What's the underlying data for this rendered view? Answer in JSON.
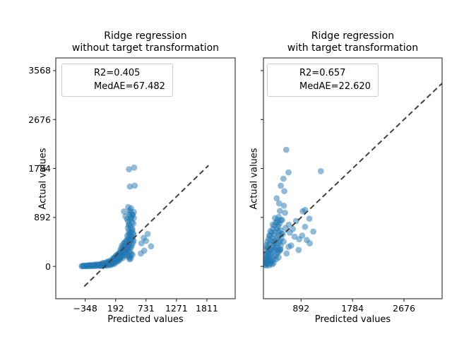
{
  "figure": {
    "background": "#ffffff"
  },
  "style": {
    "marker_color": "#1f77b4",
    "marker_opacity": 0.5,
    "marker_radius": 4.4,
    "identity_line_color": "#404040",
    "spine_color": "#1a1a1a",
    "legend_border_color": "#cccccc",
    "text_color": "#000000"
  },
  "chart_data": [
    {
      "type": "scatter",
      "title": "Ridge regression\nwithout target transformation",
      "xlabel": "Predicted values",
      "ylabel": "Actual values",
      "legend": [
        "R2=0.405",
        "MedAE=67.482"
      ],
      "xlim": [
        -870,
        2313
      ],
      "ylim": [
        -590,
        3799
      ],
      "xticks": {
        "values": [
          -348,
          192,
          731,
          1271,
          1811
        ],
        "labels": [
          "−348",
          "192",
          "731",
          "1271",
          "1811"
        ]
      },
      "yticks": {
        "values": [
          0,
          892,
          1784,
          2676,
          3568
        ],
        "labels": [
          "0",
          "892",
          "1784",
          "2676",
          "3568"
        ]
      },
      "identity_line": {
        "x1": -365,
        "y1": -365,
        "x2": 1840,
        "y2": 1840
      },
      "points": [
        [
          -410,
          2
        ],
        [
          -396,
          7
        ],
        [
          -382,
          12
        ],
        [
          -368,
          4
        ],
        [
          -350,
          8
        ],
        [
          -340,
          3
        ],
        [
          -326,
          14
        ],
        [
          -312,
          5
        ],
        [
          -300,
          22
        ],
        [
          -290,
          9
        ],
        [
          -276,
          16
        ],
        [
          -262,
          4
        ],
        [
          -250,
          27
        ],
        [
          -240,
          11
        ],
        [
          -226,
          6
        ],
        [
          -212,
          19
        ],
        [
          -200,
          9
        ],
        [
          -190,
          32
        ],
        [
          -176,
          13
        ],
        [
          -162,
          24
        ],
        [
          -150,
          7
        ],
        [
          -140,
          36
        ],
        [
          -126,
          16
        ],
        [
          -112,
          29
        ],
        [
          -100,
          11
        ],
        [
          -92,
          19
        ],
        [
          -84,
          42
        ],
        [
          -72,
          8
        ],
        [
          -62,
          31
        ],
        [
          -52,
          15
        ],
        [
          -46,
          52
        ],
        [
          -36,
          23
        ],
        [
          -26,
          62
        ],
        [
          -20,
          12
        ],
        [
          -10,
          36
        ],
        [
          0,
          21
        ],
        [
          6,
          56
        ],
        [
          16,
          29
        ],
        [
          26,
          72
        ],
        [
          32,
          14
        ],
        [
          42,
          46
        ],
        [
          50,
          88
        ],
        [
          56,
          26
        ],
        [
          66,
          62
        ],
        [
          76,
          36
        ],
        [
          82,
          96
        ],
        [
          90,
          52
        ],
        [
          96,
          21
        ],
        [
          100,
          76
        ],
        [
          106,
          42
        ],
        [
          110,
          92
        ],
        [
          116,
          62
        ],
        [
          126,
          112
        ],
        [
          130,
          36
        ],
        [
          136,
          82
        ],
        [
          140,
          132
        ],
        [
          146,
          56
        ],
        [
          150,
          102
        ],
        [
          156,
          152
        ],
        [
          160,
          72
        ],
        [
          166,
          122
        ],
        [
          170,
          46
        ],
        [
          176,
          162
        ],
        [
          180,
          96
        ],
        [
          186,
          136
        ],
        [
          190,
          182
        ],
        [
          196,
          76
        ],
        [
          200,
          142
        ],
        [
          206,
          202
        ],
        [
          210,
          112
        ],
        [
          216,
          166
        ],
        [
          220,
          92
        ],
        [
          226,
          212
        ],
        [
          230,
          132
        ],
        [
          236,
          176
        ],
        [
          240,
          232
        ],
        [
          246,
          106
        ],
        [
          250,
          192
        ],
        [
          256,
          152
        ],
        [
          260,
          242
        ],
        [
          266,
          122
        ],
        [
          270,
          202
        ],
        [
          276,
          292
        ],
        [
          280,
          162
        ],
        [
          286,
          252
        ],
        [
          290,
          332
        ],
        [
          296,
          182
        ],
        [
          300,
          272
        ],
        [
          306,
          382
        ],
        [
          310,
          212
        ],
        [
          316,
          302
        ],
        [
          320,
          152
        ],
        [
          326,
          362
        ],
        [
          330,
          242
        ],
        [
          336,
          422
        ],
        [
          340,
          282
        ],
        [
          346,
          192
        ],
        [
          350,
          342
        ],
        [
          356,
          432
        ],
        [
          360,
          252
        ],
        [
          366,
          382
        ],
        [
          370,
          302
        ],
        [
          376,
          462
        ],
        [
          380,
          222
        ],
        [
          385,
          320
        ],
        [
          390,
          480
        ],
        [
          395,
          200
        ],
        [
          400,
          560
        ],
        [
          405,
          380
        ],
        [
          410,
          700
        ],
        [
          415,
          290
        ],
        [
          420,
          520
        ],
        [
          425,
          640
        ],
        [
          430,
          410
        ],
        [
          435,
          760
        ],
        [
          440,
          340
        ],
        [
          445,
          600
        ],
        [
          450,
          860
        ],
        [
          455,
          460
        ],
        [
          460,
          720
        ],
        [
          465,
          540
        ],
        [
          470,
          900
        ],
        [
          475,
          390
        ],
        [
          480,
          660
        ],
        [
          485,
          800
        ],
        [
          490,
          500
        ],
        [
          495,
          940
        ],
        [
          500,
          430
        ],
        [
          505,
          780
        ],
        [
          510,
          580
        ],
        [
          515,
          880
        ],
        [
          390,
          260
        ],
        [
          400,
          330
        ],
        [
          410,
          440
        ],
        [
          420,
          360
        ],
        [
          430,
          580
        ],
        [
          440,
          490
        ],
        [
          450,
          270
        ],
        [
          460,
          620
        ],
        [
          470,
          350
        ],
        [
          480,
          540
        ],
        [
          490,
          680
        ],
        [
          500,
          610
        ],
        [
          510,
          470
        ],
        [
          415,
          820
        ],
        [
          425,
          750
        ],
        [
          435,
          950
        ],
        [
          445,
          1020
        ],
        [
          455,
          980
        ],
        [
          465,
          1060
        ],
        [
          430,
          160
        ],
        [
          450,
          185
        ],
        [
          470,
          230
        ],
        [
          490,
          210
        ],
        [
          440,
          130
        ],
        [
          460,
          145
        ],
        [
          430,
          1770
        ],
        [
          520,
          1800
        ],
        [
          445,
          1455
        ],
        [
          530,
          1470
        ],
        [
          415,
          1080
        ],
        [
          340,
          1000
        ],
        [
          515,
          990
        ],
        [
          365,
          912
        ],
        [
          465,
          875
        ],
        [
          490,
          940
        ],
        [
          395,
          860
        ],
        [
          650,
          420
        ],
        [
          700,
          285
        ],
        [
          760,
          590
        ],
        [
          820,
          365
        ],
        [
          690,
          520
        ],
        [
          640,
          235
        ],
        [
          730,
          465
        ]
      ]
    },
    {
      "type": "scatter",
      "title": "Ridge regression\nwith target transformation",
      "xlabel": "Predicted values",
      "ylabel": "Actual values",
      "legend": [
        "R2=0.657",
        "MedAE=22.620"
      ],
      "xlim": [
        240,
        3336
      ],
      "ylim": [
        -590,
        3799
      ],
      "xticks": {
        "values": [
          892,
          1784,
          2676
        ],
        "labels": [
          "892",
          "1784",
          "2676"
        ]
      },
      "yticks": {
        "values": [
          0,
          892,
          1784,
          2676,
          3568
        ],
        "labels": [
          "",
          "",
          "",
          "",
          ""
        ]
      },
      "identity_line": {
        "x1": 200,
        "y1": 200,
        "x2": 3400,
        "y2": 3400
      },
      "points": [
        [
          270,
          120
        ],
        [
          275,
          210
        ],
        [
          280,
          60
        ],
        [
          285,
          300
        ],
        [
          290,
          150
        ],
        [
          295,
          390
        ],
        [
          300,
          90
        ],
        [
          305,
          240
        ],
        [
          310,
          450
        ],
        [
          315,
          170
        ],
        [
          320,
          330
        ],
        [
          325,
          80
        ],
        [
          330,
          500
        ],
        [
          335,
          260
        ],
        [
          340,
          130
        ],
        [
          345,
          410
        ],
        [
          350,
          200
        ],
        [
          355,
          560
        ],
        [
          360,
          300
        ],
        [
          365,
          100
        ],
        [
          370,
          470
        ],
        [
          375,
          230
        ],
        [
          380,
          620
        ],
        [
          385,
          350
        ],
        [
          390,
          160
        ],
        [
          395,
          520
        ],
        [
          400,
          280
        ],
        [
          405,
          680
        ],
        [
          410,
          390
        ],
        [
          415,
          120
        ],
        [
          420,
          580
        ],
        [
          425,
          310
        ],
        [
          430,
          740
        ],
        [
          435,
          430
        ],
        [
          440,
          190
        ],
        [
          445,
          630
        ],
        [
          450,
          340
        ],
        [
          455,
          800
        ],
        [
          460,
          480
        ],
        [
          465,
          220
        ],
        [
          470,
          690
        ],
        [
          475,
          370
        ],
        [
          480,
          850
        ],
        [
          485,
          530
        ],
        [
          490,
          250
        ],
        [
          495,
          740
        ],
        [
          500,
          420
        ],
        [
          505,
          900
        ],
        [
          510,
          570
        ],
        [
          515,
          280
        ],
        [
          520,
          780
        ],
        [
          525,
          460
        ],
        [
          530,
          310
        ],
        [
          535,
          660
        ],
        [
          540,
          380
        ],
        [
          545,
          840
        ],
        [
          550,
          510
        ],
        [
          555,
          590
        ],
        [
          280,
          180
        ],
        [
          300,
          350
        ],
        [
          320,
          240
        ],
        [
          340,
          560
        ],
        [
          360,
          640
        ],
        [
          380,
          90
        ],
        [
          400,
          760
        ],
        [
          420,
          460
        ],
        [
          440,
          880
        ],
        [
          460,
          130
        ],
        [
          480,
          300
        ],
        [
          500,
          640
        ],
        [
          614,
          977
        ],
        [
          920,
          1003
        ],
        [
          1035,
          870
        ],
        [
          565,
          848
        ],
        [
          806,
          826
        ],
        [
          484,
          805
        ],
        [
          962,
          720
        ],
        [
          1104,
          634
        ],
        [
          696,
          613
        ],
        [
          574,
          591
        ],
        [
          859,
          492
        ],
        [
          1043,
          420
        ],
        [
          676,
          356
        ],
        [
          534,
          304
        ],
        [
          503,
          163
        ],
        [
          640,
          235
        ],
        [
          590,
          450
        ],
        [
          720,
          380
        ],
        [
          780,
          540
        ],
        [
          850,
          300
        ],
        [
          910,
          560
        ],
        [
          990,
          480
        ],
        [
          620,
          700
        ],
        [
          680,
          760
        ],
        [
          750,
          680
        ],
        [
          635,
          2124
        ],
        [
          675,
          1713
        ],
        [
          1235,
          1735
        ],
        [
          586,
          1598
        ],
        [
          541,
          1469
        ],
        [
          602,
          1371
        ],
        [
          513,
          1148
        ],
        [
          595,
          1105
        ],
        [
          962,
          1028
        ],
        [
          470,
          1240
        ],
        [
          525,
          1010
        ],
        [
          265,
          30
        ],
        [
          285,
          15
        ],
        [
          310,
          45
        ],
        [
          335,
          20
        ],
        [
          360,
          55
        ],
        [
          390,
          35
        ],
        [
          415,
          60
        ],
        [
          270,
          75
        ],
        [
          295,
          55
        ],
        [
          320,
          95
        ]
      ]
    }
  ]
}
